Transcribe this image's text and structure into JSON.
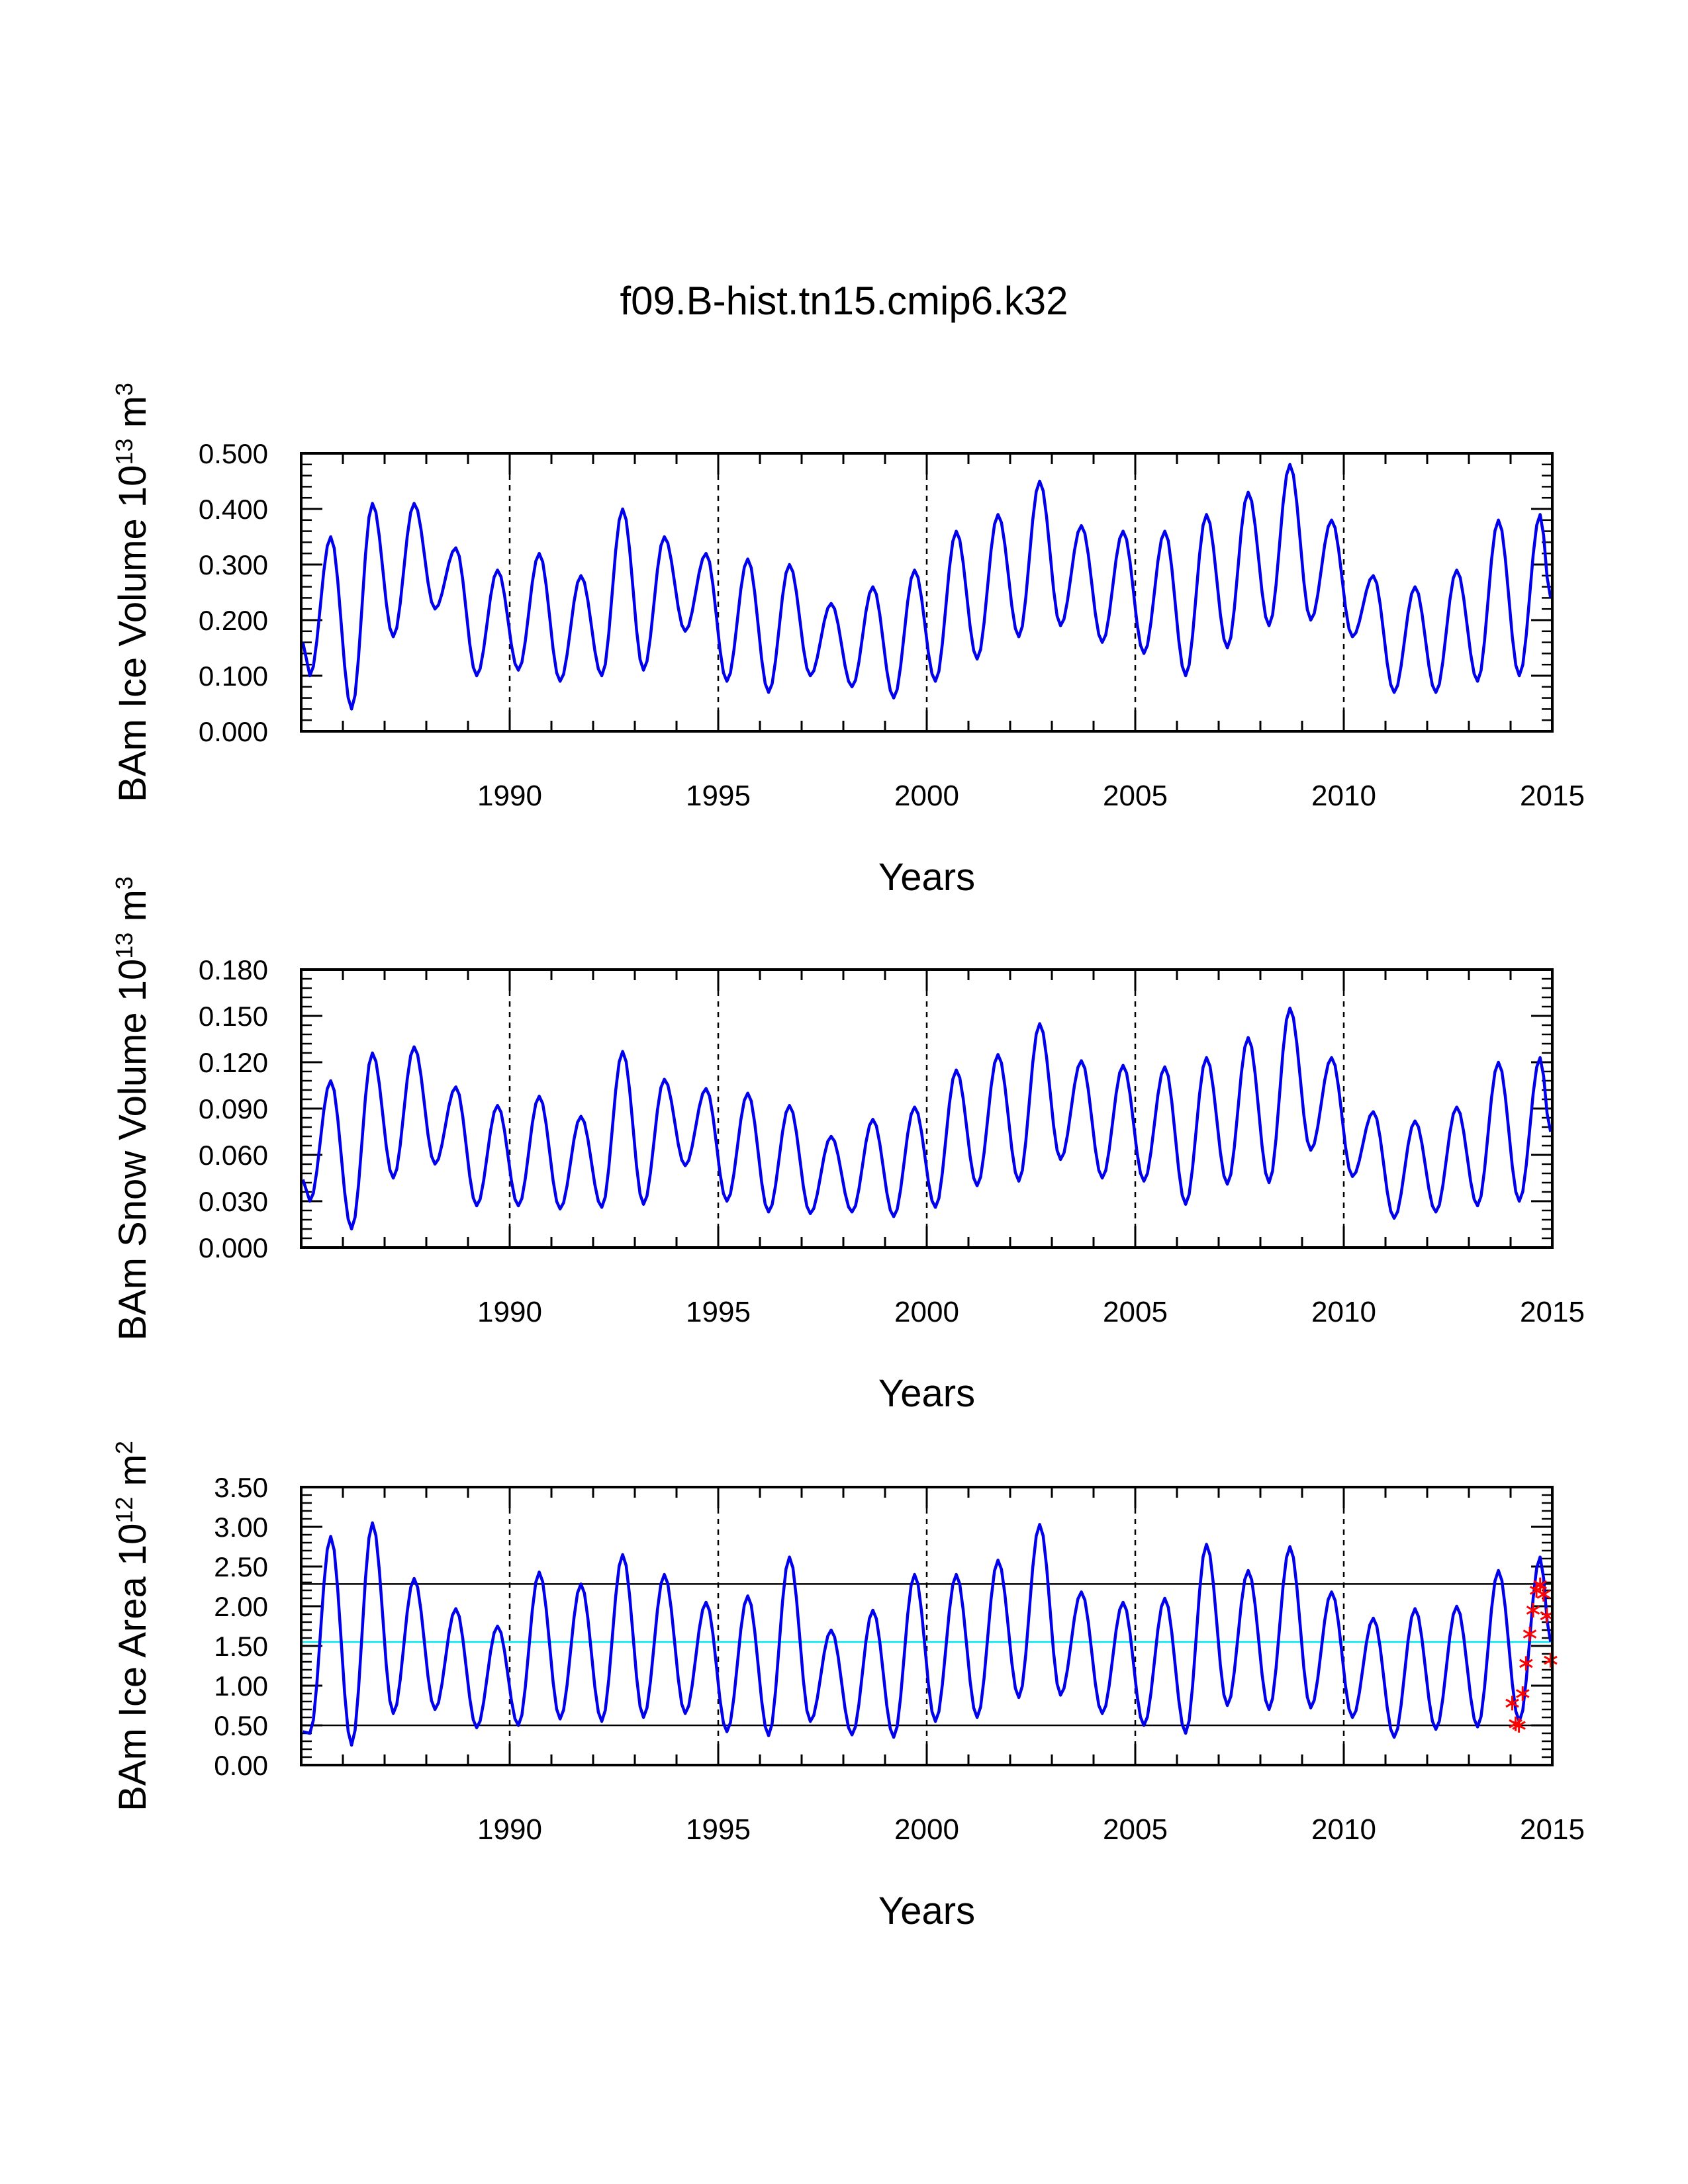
{
  "title": "f09.B-hist.tn15.cmip6.k32",
  "colors": {
    "series": "#0000ee",
    "gridline": "#000000",
    "hline": "#000000",
    "mean_line": "#00e5ee",
    "obs_marker": "#ff0000",
    "frame": "#000000"
  },
  "chart_data": [
    {
      "type": "line",
      "id": "ice-volume",
      "title": "",
      "xlabel": "Years",
      "ylabel": "BAm Ice Volume 10^13 m^3",
      "ylabel_parts": {
        "base": "BAm Ice Volume 10",
        "exp1": "13",
        "mid": " m",
        "exp2": "3"
      },
      "xlim": [
        1985,
        2015
      ],
      "ylim": [
        0.0,
        0.5
      ],
      "yticks": [
        0.0,
        0.1,
        0.2,
        0.3,
        0.4,
        0.5
      ],
      "ytick_labels": [
        "0.000",
        "0.100",
        "0.200",
        "0.300",
        "0.400",
        "0.500"
      ],
      "xticks": [
        1990,
        1995,
        2000,
        2005,
        2010,
        2015
      ],
      "xtick_labels": [
        "1990",
        "1995",
        "2000",
        "2005",
        "2010",
        "2015"
      ],
      "vertical_dashed_lines": [
        1990,
        1995,
        2000,
        2005,
        2010
      ],
      "horizontal_lines": [],
      "series": [
        {
          "name": "BAm Ice Volume",
          "annual_max_month": 9,
          "annual_min_month": 3,
          "extremes": [
            {
              "year": 1985,
              "max": 0.35,
              "min": 0.1,
              "first_value": 0.16
            },
            {
              "year": 1986,
              "max": 0.41,
              "min": 0.04
            },
            {
              "year": 1987,
              "max": 0.41,
              "min": 0.17
            },
            {
              "year": 1988,
              "max": 0.33,
              "min": 0.22
            },
            {
              "year": 1989,
              "max": 0.29,
              "min": 0.1
            },
            {
              "year": 1990,
              "max": 0.32,
              "min": 0.11
            },
            {
              "year": 1991,
              "max": 0.28,
              "min": 0.09
            },
            {
              "year": 1992,
              "max": 0.4,
              "min": 0.1
            },
            {
              "year": 1993,
              "max": 0.35,
              "min": 0.11
            },
            {
              "year": 1994,
              "max": 0.32,
              "min": 0.18
            },
            {
              "year": 1995,
              "max": 0.31,
              "min": 0.09
            },
            {
              "year": 1996,
              "max": 0.3,
              "min": 0.07
            },
            {
              "year": 1997,
              "max": 0.23,
              "min": 0.1
            },
            {
              "year": 1998,
              "max": 0.26,
              "min": 0.08
            },
            {
              "year": 1999,
              "max": 0.29,
              "min": 0.06
            },
            {
              "year": 2000,
              "max": 0.36,
              "min": 0.09
            },
            {
              "year": 2001,
              "max": 0.39,
              "min": 0.13
            },
            {
              "year": 2002,
              "max": 0.45,
              "min": 0.17
            },
            {
              "year": 2003,
              "max": 0.37,
              "min": 0.19
            },
            {
              "year": 2004,
              "max": 0.36,
              "min": 0.16
            },
            {
              "year": 2005,
              "max": 0.36,
              "min": 0.14
            },
            {
              "year": 2006,
              "max": 0.39,
              "min": 0.1
            },
            {
              "year": 2007,
              "max": 0.43,
              "min": 0.15
            },
            {
              "year": 2008,
              "max": 0.48,
              "min": 0.19
            },
            {
              "year": 2009,
              "max": 0.38,
              "min": 0.2
            },
            {
              "year": 2010,
              "max": 0.28,
              "min": 0.17
            },
            {
              "year": 2011,
              "max": 0.26,
              "min": 0.07
            },
            {
              "year": 2012,
              "max": 0.29,
              "min": 0.07
            },
            {
              "year": 2013,
              "max": 0.38,
              "min": 0.09
            },
            {
              "year": 2014,
              "max": 0.39,
              "min": 0.1
            }
          ]
        }
      ],
      "markers": []
    },
    {
      "type": "line",
      "id": "snow-volume",
      "title": "",
      "xlabel": "Years",
      "ylabel": "BAm Snow Volume 10^13 m^3",
      "ylabel_parts": {
        "base": "BAm Snow Volume 10",
        "exp1": "13",
        "mid": " m",
        "exp2": "3"
      },
      "xlim": [
        1985,
        2015
      ],
      "ylim": [
        0.0,
        0.18
      ],
      "yticks": [
        0.0,
        0.03,
        0.06,
        0.09,
        0.12,
        0.15,
        0.18
      ],
      "ytick_labels": [
        "0.000",
        "0.030",
        "0.060",
        "0.090",
        "0.120",
        "0.150",
        "0.180"
      ],
      "xticks": [
        1990,
        1995,
        2000,
        2005,
        2010,
        2015
      ],
      "xtick_labels": [
        "1990",
        "1995",
        "2000",
        "2005",
        "2010",
        "2015"
      ],
      "vertical_dashed_lines": [
        1990,
        1995,
        2000,
        2005,
        2010
      ],
      "horizontal_lines": [],
      "series": [
        {
          "name": "BAm Snow Volume",
          "annual_max_month": 9,
          "annual_min_month": 3,
          "extremes": [
            {
              "year": 1985,
              "max": 0.108,
              "min": 0.03,
              "first_value": 0.044
            },
            {
              "year": 1986,
              "max": 0.126,
              "min": 0.012
            },
            {
              "year": 1987,
              "max": 0.13,
              "min": 0.045
            },
            {
              "year": 1988,
              "max": 0.104,
              "min": 0.054
            },
            {
              "year": 1989,
              "max": 0.092,
              "min": 0.027
            },
            {
              "year": 1990,
              "max": 0.098,
              "min": 0.027
            },
            {
              "year": 1991,
              "max": 0.085,
              "min": 0.025
            },
            {
              "year": 1992,
              "max": 0.127,
              "min": 0.026
            },
            {
              "year": 1993,
              "max": 0.109,
              "min": 0.028
            },
            {
              "year": 1994,
              "max": 0.103,
              "min": 0.053
            },
            {
              "year": 1995,
              "max": 0.1,
              "min": 0.03
            },
            {
              "year": 1996,
              "max": 0.092,
              "min": 0.023
            },
            {
              "year": 1997,
              "max": 0.072,
              "min": 0.022
            },
            {
              "year": 1998,
              "max": 0.083,
              "min": 0.023
            },
            {
              "year": 1999,
              "max": 0.091,
              "min": 0.02
            },
            {
              "year": 2000,
              "max": 0.115,
              "min": 0.026
            },
            {
              "year": 2001,
              "max": 0.125,
              "min": 0.04
            },
            {
              "year": 2002,
              "max": 0.145,
              "min": 0.043
            },
            {
              "year": 2003,
              "max": 0.121,
              "min": 0.057
            },
            {
              "year": 2004,
              "max": 0.118,
              "min": 0.045
            },
            {
              "year": 2005,
              "max": 0.117,
              "min": 0.043
            },
            {
              "year": 2006,
              "max": 0.123,
              "min": 0.028
            },
            {
              "year": 2007,
              "max": 0.136,
              "min": 0.041
            },
            {
              "year": 2008,
              "max": 0.155,
              "min": 0.042
            },
            {
              "year": 2009,
              "max": 0.123,
              "min": 0.063
            },
            {
              "year": 2010,
              "max": 0.088,
              "min": 0.046
            },
            {
              "year": 2011,
              "max": 0.082,
              "min": 0.019
            },
            {
              "year": 2012,
              "max": 0.091,
              "min": 0.023
            },
            {
              "year": 2013,
              "max": 0.12,
              "min": 0.027
            },
            {
              "year": 2014,
              "max": 0.123,
              "min": 0.03
            }
          ]
        }
      ],
      "markers": []
    },
    {
      "type": "line",
      "id": "ice-area",
      "title": "",
      "xlabel": "Years",
      "ylabel": "BAm Ice Area 10^12 m^2",
      "ylabel_parts": {
        "base": "BAm Ice Area 10",
        "exp1": "12",
        "mid": " m",
        "exp2": "2"
      },
      "xlim": [
        1985,
        2015
      ],
      "ylim": [
        0.0,
        3.5
      ],
      "yticks": [
        0.0,
        0.5,
        1.0,
        1.5,
        2.0,
        2.5,
        3.0,
        3.5
      ],
      "ytick_labels": [
        "0.00",
        "0.50",
        "1.00",
        "1.50",
        "2.00",
        "2.50",
        "3.00",
        "3.50"
      ],
      "xticks": [
        1990,
        1995,
        2000,
        2005,
        2010,
        2015
      ],
      "xtick_labels": [
        "1990",
        "1995",
        "2000",
        "2005",
        "2010",
        "2015"
      ],
      "vertical_dashed_lines": [
        1990,
        1995,
        2000,
        2005,
        2010
      ],
      "horizontal_lines": [
        {
          "value": 2.28,
          "color": "#000000"
        },
        {
          "value": 0.5,
          "color": "#000000"
        },
        {
          "value": 1.55,
          "color": "#00e5ee"
        }
      ],
      "series": [
        {
          "name": "BAm Ice Area",
          "annual_max_month": 9,
          "annual_min_month": 3,
          "extremes": [
            {
              "year": 1985,
              "max": 2.88,
              "min": 0.4,
              "first_value": 0.42
            },
            {
              "year": 1986,
              "max": 3.05,
              "min": 0.25
            },
            {
              "year": 1987,
              "max": 2.35,
              "min": 0.65
            },
            {
              "year": 1988,
              "max": 1.97,
              "min": 0.7
            },
            {
              "year": 1989,
              "max": 1.75,
              "min": 0.47
            },
            {
              "year": 1990,
              "max": 2.43,
              "min": 0.5
            },
            {
              "year": 1991,
              "max": 2.28,
              "min": 0.58
            },
            {
              "year": 1992,
              "max": 2.65,
              "min": 0.55
            },
            {
              "year": 1993,
              "max": 2.4,
              "min": 0.6
            },
            {
              "year": 1994,
              "max": 2.05,
              "min": 0.65
            },
            {
              "year": 1995,
              "max": 2.13,
              "min": 0.42
            },
            {
              "year": 1996,
              "max": 2.62,
              "min": 0.37
            },
            {
              "year": 1997,
              "max": 1.7,
              "min": 0.55
            },
            {
              "year": 1998,
              "max": 1.95,
              "min": 0.38
            },
            {
              "year": 1999,
              "max": 2.4,
              "min": 0.35
            },
            {
              "year": 2000,
              "max": 2.4,
              "min": 0.55
            },
            {
              "year": 2001,
              "max": 2.58,
              "min": 0.6
            },
            {
              "year": 2002,
              "max": 3.03,
              "min": 0.85
            },
            {
              "year": 2003,
              "max": 2.18,
              "min": 0.88
            },
            {
              "year": 2004,
              "max": 2.05,
              "min": 0.65
            },
            {
              "year": 2005,
              "max": 2.1,
              "min": 0.5
            },
            {
              "year": 2006,
              "max": 2.78,
              "min": 0.4
            },
            {
              "year": 2007,
              "max": 2.45,
              "min": 0.75
            },
            {
              "year": 2008,
              "max": 2.75,
              "min": 0.7
            },
            {
              "year": 2009,
              "max": 2.18,
              "min": 0.72
            },
            {
              "year": 2010,
              "max": 1.85,
              "min": 0.6
            },
            {
              "year": 2011,
              "max": 1.97,
              "min": 0.35
            },
            {
              "year": 2012,
              "max": 2.0,
              "min": 0.45
            },
            {
              "year": 2013,
              "max": 2.45,
              "min": 0.48
            },
            {
              "year": 2014,
              "max": 2.62,
              "min": 0.55
            }
          ]
        }
      ],
      "markers": [
        {
          "name": "observations",
          "symbol": "asterisk",
          "color": "#ff0000",
          "points": [
            {
              "x": 2014.04,
              "y": 0.78
            },
            {
              "x": 2014.12,
              "y": 0.52
            },
            {
              "x": 2014.2,
              "y": 0.5
            },
            {
              "x": 2014.29,
              "y": 0.9
            },
            {
              "x": 2014.37,
              "y": 1.28
            },
            {
              "x": 2014.46,
              "y": 1.65
            },
            {
              "x": 2014.54,
              "y": 1.95
            },
            {
              "x": 2014.62,
              "y": 2.2
            },
            {
              "x": 2014.71,
              "y": 2.27
            },
            {
              "x": 2014.79,
              "y": 2.15
            },
            {
              "x": 2014.87,
              "y": 1.88
            },
            {
              "x": 2014.96,
              "y": 1.32
            }
          ]
        }
      ]
    }
  ]
}
